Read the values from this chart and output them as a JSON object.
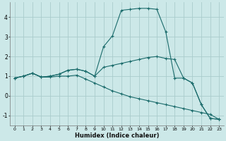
{
  "xlabel": "Humidex (Indice chaleur)",
  "background_color": "#cce8e8",
  "grid_color": "#aacccc",
  "line_color": "#1a6b6b",
  "line2_x": [
    0,
    1,
    2,
    3,
    4,
    5,
    6,
    7,
    8,
    9,
    10,
    11,
    12,
    13,
    14,
    15,
    16,
    17,
    18,
    19,
    20,
    21,
    22,
    23
  ],
  "line2_y": [
    0.9,
    1.0,
    1.15,
    0.95,
    1.0,
    1.1,
    1.3,
    1.35,
    1.25,
    1.0,
    2.5,
    3.05,
    4.35,
    4.4,
    4.45,
    4.45,
    4.4,
    3.25,
    0.9,
    0.9,
    0.65,
    -0.45,
    -1.15,
    -1.2
  ],
  "line1_x": [
    0,
    1,
    2,
    3,
    4,
    5,
    6,
    7,
    8,
    9,
    10,
    11,
    12,
    13,
    14,
    15,
    16,
    17,
    18,
    19,
    20,
    21,
    22,
    23
  ],
  "line1_y": [
    0.9,
    1.0,
    1.15,
    0.95,
    1.0,
    1.1,
    1.3,
    1.35,
    1.25,
    1.0,
    1.45,
    1.55,
    1.65,
    1.75,
    1.85,
    1.95,
    2.0,
    1.9,
    1.85,
    0.9,
    0.65,
    -0.45,
    -1.15,
    -1.2
  ],
  "line3_x": [
    0,
    1,
    2,
    3,
    4,
    5,
    6,
    7,
    8,
    9,
    10,
    11,
    12,
    13,
    14,
    15,
    16,
    17,
    18,
    19,
    20,
    21,
    22,
    23
  ],
  "line3_y": [
    0.9,
    1.0,
    1.15,
    0.95,
    0.95,
    1.0,
    1.0,
    1.05,
    0.85,
    0.65,
    0.45,
    0.25,
    0.1,
    -0.05,
    -0.15,
    -0.25,
    -0.35,
    -0.45,
    -0.55,
    -0.65,
    -0.75,
    -0.85,
    -0.95,
    -1.2
  ],
  "ylim": [
    -1.5,
    4.75
  ],
  "xlim": [
    -0.5,
    23.5
  ],
  "yticks": [
    -1,
    0,
    1,
    2,
    3,
    4
  ],
  "xticks": [
    0,
    1,
    2,
    3,
    4,
    5,
    6,
    7,
    8,
    9,
    10,
    11,
    12,
    13,
    14,
    15,
    16,
    17,
    18,
    19,
    20,
    21,
    22,
    23
  ],
  "xticklabels": [
    "0",
    "1",
    "2",
    "3",
    "4",
    "5",
    "6",
    "7",
    "8",
    "9",
    "10",
    "11",
    "12",
    "13",
    "14",
    "15",
    "16",
    "17",
    "18",
    "19",
    "20",
    "21",
    "22",
    "23"
  ]
}
